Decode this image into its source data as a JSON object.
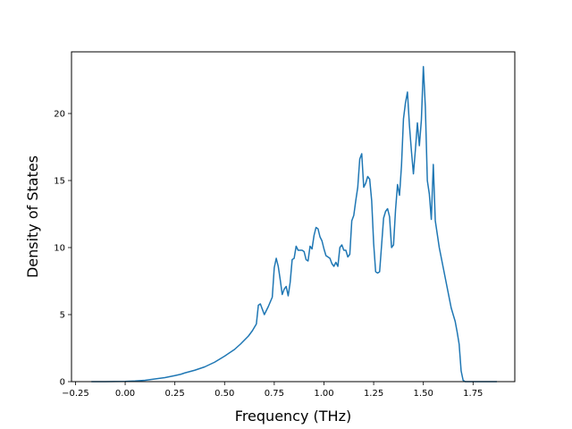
{
  "chart_data": {
    "type": "line",
    "title": "",
    "xlabel": "Frequency (THz)",
    "ylabel": "Density of States",
    "xlim": [
      -0.27,
      1.96
    ],
    "ylim": [
      0,
      24.6
    ],
    "grid": false,
    "xticks": [
      -0.25,
      0.0,
      0.25,
      0.5,
      0.75,
      1.0,
      1.25,
      1.5,
      1.75
    ],
    "xtick_labels": [
      "−0.25",
      "0.00",
      "0.25",
      "0.50",
      "0.75",
      "1.00",
      "1.25",
      "1.50",
      "1.75"
    ],
    "yticks": [
      0,
      5,
      10,
      15,
      20
    ],
    "ytick_labels": [
      "0",
      "5",
      "10",
      "15",
      "20"
    ],
    "line_color": "#1f77b4",
    "series": [
      {
        "x": [
          -0.17,
          -0.1,
          0.0,
          0.05,
          0.1,
          0.15,
          0.2,
          0.25,
          0.28,
          0.3,
          0.35,
          0.4,
          0.45,
          0.5,
          0.55,
          0.58,
          0.6,
          0.62,
          0.64,
          0.66,
          0.67,
          0.68,
          0.7,
          0.72,
          0.74,
          0.75,
          0.76,
          0.77,
          0.78,
          0.79,
          0.8,
          0.81,
          0.82,
          0.83,
          0.84,
          0.85,
          0.86,
          0.87,
          0.88,
          0.89,
          0.9,
          0.91,
          0.92,
          0.93,
          0.94,
          0.95,
          0.96,
          0.97,
          0.98,
          0.99,
          1.0,
          1.01,
          1.02,
          1.03,
          1.04,
          1.05,
          1.06,
          1.07,
          1.08,
          1.09,
          1.1,
          1.11,
          1.12,
          1.13,
          1.14,
          1.15,
          1.16,
          1.17,
          1.18,
          1.19,
          1.2,
          1.21,
          1.22,
          1.23,
          1.24,
          1.25,
          1.26,
          1.27,
          1.28,
          1.29,
          1.3,
          1.31,
          1.32,
          1.33,
          1.34,
          1.35,
          1.36,
          1.37,
          1.38,
          1.39,
          1.4,
          1.41,
          1.42,
          1.43,
          1.44,
          1.45,
          1.46,
          1.47,
          1.48,
          1.49,
          1.5,
          1.51,
          1.52,
          1.53,
          1.54,
          1.55,
          1.56,
          1.57,
          1.58,
          1.6,
          1.62,
          1.64,
          1.66,
          1.67,
          1.68,
          1.69,
          1.7,
          1.71,
          1.73,
          1.75,
          1.8,
          1.87
        ],
        "y": [
          0,
          0,
          0.02,
          0.05,
          0.1,
          0.2,
          0.3,
          0.45,
          0.55,
          0.65,
          0.85,
          1.1,
          1.45,
          1.9,
          2.4,
          2.8,
          3.1,
          3.4,
          3.8,
          4.3,
          5.7,
          5.8,
          5.0,
          5.6,
          6.3,
          8.5,
          9.2,
          8.6,
          7.6,
          6.5,
          6.9,
          7.1,
          6.4,
          7.4,
          9.1,
          9.2,
          10.1,
          9.8,
          9.8,
          9.8,
          9.7,
          9.1,
          9.0,
          10.1,
          9.9,
          10.9,
          11.5,
          11.4,
          10.8,
          10.5,
          9.9,
          9.4,
          9.3,
          9.2,
          8.8,
          8.6,
          8.9,
          8.6,
          10.0,
          10.2,
          9.8,
          9.8,
          9.3,
          9.5,
          12.0,
          12.4,
          13.5,
          14.5,
          16.6,
          17.0,
          14.5,
          14.8,
          15.3,
          15.1,
          13.5,
          10.3,
          8.2,
          8.1,
          8.2,
          10.2,
          12.2,
          12.7,
          12.9,
          12.3,
          10.0,
          10.2,
          12.8,
          14.7,
          13.9,
          16.1,
          19.6,
          20.8,
          21.6,
          19.1,
          17.2,
          15.5,
          17.3,
          19.3,
          17.6,
          19.5,
          23.5,
          20.5,
          15.0,
          14.0,
          12.1,
          16.2,
          12.0,
          11.0,
          10.0,
          8.5,
          7.0,
          5.5,
          4.5,
          3.7,
          2.8,
          0.8,
          0.1,
          0,
          0,
          0,
          0,
          0
        ]
      }
    ]
  }
}
